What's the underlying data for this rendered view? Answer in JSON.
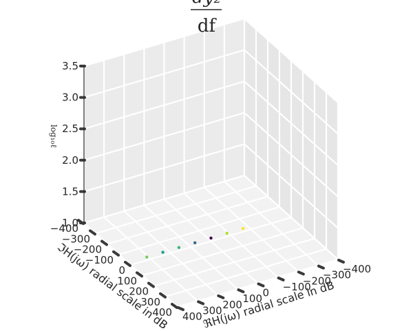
{
  "chart_data": {
    "type": "scatter",
    "title": "dy₂/df",
    "title_numerator": "dy₂",
    "title_denominator": "df",
    "xlabel": "ℜH(jω) radial scale in dB",
    "ylabel": "ℑH(jω) radial scale in dB",
    "zlabel": "log₁₀ℓ",
    "x_ticks": [
      "400",
      "300",
      "200",
      "100",
      "0",
      "−100",
      "−200",
      "−300",
      "−400"
    ],
    "y_ticks": [
      "−400",
      "−300",
      "−200",
      "−100",
      "0",
      "100",
      "200",
      "300",
      "400"
    ],
    "z_ticks": [
      "1.0",
      "1.5",
      "2.0",
      "2.5",
      "3.0",
      "3.5"
    ],
    "xlim": [
      -400,
      400
    ],
    "ylim": [
      -400,
      400
    ],
    "zlim": [
      1.0,
      3.5
    ],
    "grid": true,
    "colormap": [
      "#440154",
      "#31688e",
      "#35b779",
      "#1f9e89",
      "#6ece58",
      "#b5de2b",
      "#fde725",
      "#26828e",
      "#2d1e3e"
    ],
    "series": [
      {
        "values": [
          {
            "x": 0,
            "y": 0,
            "z": 1.05
          },
          {
            "x": 80,
            "y": 0,
            "z": 1.05
          },
          {
            "x": 160,
            "y": 0,
            "z": 1.05
          },
          {
            "x": 240,
            "y": 0,
            "z": 1.05
          },
          {
            "x": 320,
            "y": 0,
            "z": 1.05
          },
          {
            "x": -80,
            "y": 0,
            "z": 1.05
          },
          {
            "x": -160,
            "y": 0,
            "z": 1.05
          }
        ]
      }
    ]
  }
}
